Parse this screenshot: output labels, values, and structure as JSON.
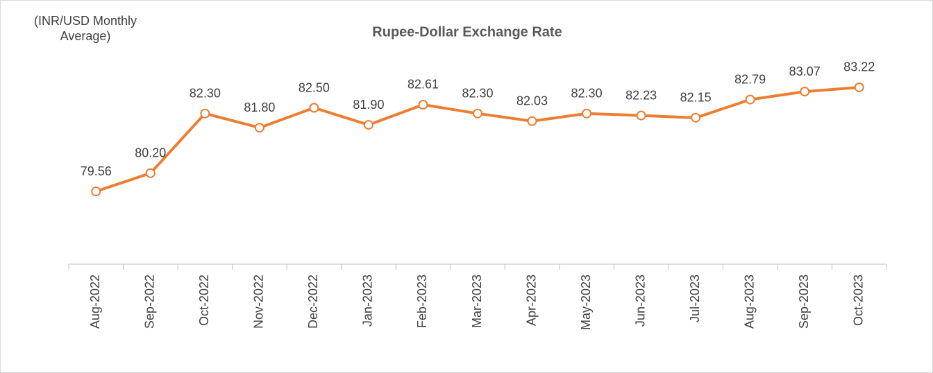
{
  "chart_data": {
    "type": "line",
    "title": "Rupee-Dollar Exchange Rate",
    "y_label": "(INR/USD Monthly Average)",
    "categories": [
      "Aug-2022",
      "Sep-2022",
      "Oct-2022",
      "Nov-2022",
      "Dec-2022",
      "Jan-2023",
      "Feb-2023",
      "Mar-2023",
      "Apr-2023",
      "May-2023",
      "Jun-2023",
      "Jul-2023",
      "Aug-2023",
      "Sep-2023",
      "Oct-2023"
    ],
    "series": [
      {
        "color": "#ed7d31",
        "values": [
          79.56,
          80.2,
          82.3,
          81.8,
          82.5,
          81.9,
          82.61,
          82.3,
          82.03,
          82.3,
          82.23,
          82.15,
          82.79,
          83.07,
          83.22
        ],
        "value_labels": [
          "79.56",
          "80.20",
          "82.30",
          "81.80",
          "82.50",
          "81.90",
          "82.61",
          "82.30",
          "82.03",
          "82.30",
          "82.23",
          "82.15",
          "82.79",
          "83.07",
          "83.22"
        ]
      }
    ],
    "ylim": [
      77,
      85
    ]
  }
}
